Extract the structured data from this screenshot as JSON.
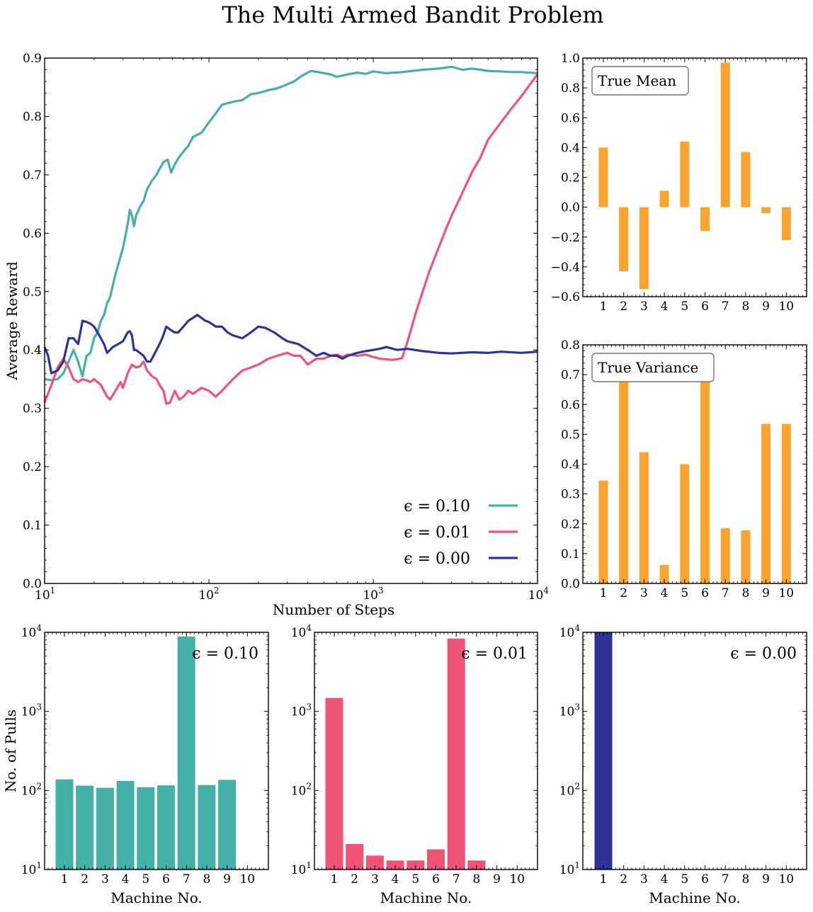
{
  "figure": {
    "title": "The Multi Armed Bandit Problem"
  },
  "colors": {
    "eps010": "#44b0a8",
    "eps001": "#ef5377",
    "eps000": "#2e3399",
    "orange": "#fba32f"
  },
  "chart_data": [
    {
      "id": "reward",
      "type": "line",
      "xscale": "log",
      "xlim": [
        10,
        10000
      ],
      "ylim": [
        0,
        0.9
      ],
      "xlabel": "Number of Steps",
      "ylabel": "Average Reward",
      "xticks": [
        10,
        100,
        1000,
        10000
      ],
      "xticklabels": [
        "10^1",
        "10^2",
        "10^3",
        "10^4"
      ],
      "yticks": [
        0.0,
        0.1,
        0.2,
        0.3,
        0.4,
        0.5,
        0.6,
        0.7,
        0.8,
        0.9
      ],
      "legend_position": "lower-right",
      "series": [
        {
          "name": "ϵ = 0.10",
          "color_key": "eps010",
          "points": [
            [
              10,
              0.35
            ],
            [
              11,
              0.348
            ],
            [
              12,
              0.35
            ],
            [
              13,
              0.36
            ],
            [
              14,
              0.38
            ],
            [
              15,
              0.4
            ],
            [
              16,
              0.38
            ],
            [
              17,
              0.355
            ],
            [
              18,
              0.39
            ],
            [
              19,
              0.395
            ],
            [
              20,
              0.42
            ],
            [
              21,
              0.43
            ],
            [
              22,
              0.45
            ],
            [
              23,
              0.46
            ],
            [
              24,
              0.48
            ],
            [
              25,
              0.49
            ],
            [
              26,
              0.51
            ],
            [
              27,
              0.53
            ],
            [
              28,
              0.545
            ],
            [
              29,
              0.56
            ],
            [
              30,
              0.575
            ],
            [
              31,
              0.595
            ],
            [
              32,
              0.615
            ],
            [
              33,
              0.64
            ],
            [
              34,
              0.63
            ],
            [
              35,
              0.612
            ],
            [
              36,
              0.63
            ],
            [
              38,
              0.645
            ],
            [
              40,
              0.655
            ],
            [
              42,
              0.675
            ],
            [
              45,
              0.69
            ],
            [
              48,
              0.7
            ],
            [
              50,
              0.71
            ],
            [
              53,
              0.722
            ],
            [
              56,
              0.726
            ],
            [
              59,
              0.704
            ],
            [
              62,
              0.718
            ],
            [
              65,
              0.728
            ],
            [
              70,
              0.74
            ],
            [
              75,
              0.75
            ],
            [
              80,
              0.765
            ],
            [
              90,
              0.772
            ],
            [
              100,
              0.79
            ],
            [
              110,
              0.805
            ],
            [
              120,
              0.82
            ],
            [
              140,
              0.825
            ],
            [
              160,
              0.828
            ],
            [
              180,
              0.838
            ],
            [
              200,
              0.84
            ],
            [
              230,
              0.845
            ],
            [
              260,
              0.848
            ],
            [
              300,
              0.855
            ],
            [
              330,
              0.86
            ],
            [
              370,
              0.87
            ],
            [
              420,
              0.878
            ],
            [
              480,
              0.875
            ],
            [
              550,
              0.872
            ],
            [
              600,
              0.868
            ],
            [
              700,
              0.872
            ],
            [
              800,
              0.875
            ],
            [
              900,
              0.873
            ],
            [
              1000,
              0.877
            ],
            [
              1200,
              0.874
            ],
            [
              1500,
              0.876
            ],
            [
              2000,
              0.88
            ],
            [
              2500,
              0.882
            ],
            [
              3000,
              0.885
            ],
            [
              3500,
              0.88
            ],
            [
              4000,
              0.882
            ],
            [
              5000,
              0.878
            ],
            [
              6000,
              0.877
            ],
            [
              7000,
              0.876
            ],
            [
              8000,
              0.876
            ],
            [
              10000,
              0.874
            ]
          ]
        },
        {
          "name": "ϵ = 0.01",
          "color_key": "eps001",
          "points": [
            [
              10,
              0.31
            ],
            [
              11,
              0.34
            ],
            [
              12,
              0.37
            ],
            [
              13,
              0.385
            ],
            [
              14,
              0.37
            ],
            [
              15,
              0.35
            ],
            [
              16,
              0.345
            ],
            [
              17,
              0.35
            ],
            [
              18,
              0.348
            ],
            [
              19,
              0.345
            ],
            [
              20,
              0.35
            ],
            [
              22,
              0.34
            ],
            [
              24,
              0.32
            ],
            [
              25,
              0.315
            ],
            [
              27,
              0.33
            ],
            [
              29,
              0.345
            ],
            [
              30,
              0.335
            ],
            [
              32,
              0.36
            ],
            [
              34,
              0.375
            ],
            [
              36,
              0.37
            ],
            [
              38,
              0.372
            ],
            [
              40,
              0.38
            ],
            [
              42,
              0.365
            ],
            [
              45,
              0.355
            ],
            [
              48,
              0.35
            ],
            [
              50,
              0.34
            ],
            [
              53,
              0.33
            ],
            [
              55,
              0.308
            ],
            [
              58,
              0.31
            ],
            [
              62,
              0.33
            ],
            [
              66,
              0.315
            ],
            [
              70,
              0.32
            ],
            [
              75,
              0.33
            ],
            [
              80,
              0.325
            ],
            [
              90,
              0.335
            ],
            [
              100,
              0.33
            ],
            [
              110,
              0.32
            ],
            [
              120,
              0.33
            ],
            [
              140,
              0.35
            ],
            [
              160,
              0.365
            ],
            [
              180,
              0.37
            ],
            [
              200,
              0.375
            ],
            [
              230,
              0.385
            ],
            [
              260,
              0.39
            ],
            [
              300,
              0.395
            ],
            [
              330,
              0.39
            ],
            [
              360,
              0.39
            ],
            [
              400,
              0.375
            ],
            [
              450,
              0.385
            ],
            [
              500,
              0.385
            ],
            [
              550,
              0.39
            ],
            [
              600,
              0.392
            ],
            [
              650,
              0.388
            ],
            [
              700,
              0.392
            ],
            [
              800,
              0.39
            ],
            [
              900,
              0.392
            ],
            [
              1000,
              0.388
            ],
            [
              1100,
              0.385
            ],
            [
              1200,
              0.384
            ],
            [
              1300,
              0.383
            ],
            [
              1400,
              0.384
            ],
            [
              1500,
              0.386
            ],
            [
              1600,
              0.41
            ],
            [
              1700,
              0.435
            ],
            [
              1800,
              0.46
            ],
            [
              2000,
              0.5
            ],
            [
              2200,
              0.535
            ],
            [
              2500,
              0.575
            ],
            [
              2800,
              0.61
            ],
            [
              3000,
              0.63
            ],
            [
              3500,
              0.67
            ],
            [
              4000,
              0.705
            ],
            [
              4500,
              0.73
            ],
            [
              5000,
              0.76
            ],
            [
              6000,
              0.79
            ],
            [
              7000,
              0.815
            ],
            [
              8000,
              0.835
            ],
            [
              9000,
              0.855
            ],
            [
              10000,
              0.872
            ]
          ]
        },
        {
          "name": "ϵ = 0.00",
          "color_key": "eps000",
          "points": [
            [
              10,
              0.405
            ],
            [
              10.5,
              0.39
            ],
            [
              11,
              0.36
            ],
            [
              12,
              0.365
            ],
            [
              13,
              0.38
            ],
            [
              14,
              0.42
            ],
            [
              15,
              0.42
            ],
            [
              16,
              0.41
            ],
            [
              17,
              0.45
            ],
            [
              18,
              0.448
            ],
            [
              19,
              0.445
            ],
            [
              20,
              0.44
            ],
            [
              21,
              0.43
            ],
            [
              22,
              0.42
            ],
            [
              23,
              0.41
            ],
            [
              24,
              0.395
            ],
            [
              25,
              0.4
            ],
            [
              26,
              0.405
            ],
            [
              28,
              0.41
            ],
            [
              30,
              0.415
            ],
            [
              32,
              0.43
            ],
            [
              33,
              0.432
            ],
            [
              34,
              0.425
            ],
            [
              35,
              0.4
            ],
            [
              36,
              0.4
            ],
            [
              38,
              0.395
            ],
            [
              40,
              0.39
            ],
            [
              42,
              0.38
            ],
            [
              44,
              0.38
            ],
            [
              46,
              0.39
            ],
            [
              48,
              0.4
            ],
            [
              50,
              0.41
            ],
            [
              52,
              0.42
            ],
            [
              55,
              0.44
            ],
            [
              58,
              0.435
            ],
            [
              62,
              0.43
            ],
            [
              65,
              0.43
            ],
            [
              70,
              0.44
            ],
            [
              75,
              0.45
            ],
            [
              80,
              0.455
            ],
            [
              85,
              0.46
            ],
            [
              90,
              0.455
            ],
            [
              95,
              0.45
            ],
            [
              100,
              0.448
            ],
            [
              110,
              0.44
            ],
            [
              120,
              0.44
            ],
            [
              130,
              0.43
            ],
            [
              140,
              0.425
            ],
            [
              160,
              0.42
            ],
            [
              180,
              0.43
            ],
            [
              200,
              0.44
            ],
            [
              220,
              0.438
            ],
            [
              250,
              0.43
            ],
            [
              280,
              0.42
            ],
            [
              300,
              0.415
            ],
            [
              350,
              0.41
            ],
            [
              400,
              0.4
            ],
            [
              450,
              0.39
            ],
            [
              500,
              0.395
            ],
            [
              550,
              0.39
            ],
            [
              600,
              0.39
            ],
            [
              650,
              0.385
            ],
            [
              700,
              0.39
            ],
            [
              800,
              0.395
            ],
            [
              900,
              0.398
            ],
            [
              1000,
              0.4
            ],
            [
              1100,
              0.402
            ],
            [
              1200,
              0.405
            ],
            [
              1400,
              0.4
            ],
            [
              1600,
              0.402
            ],
            [
              2000,
              0.398
            ],
            [
              2500,
              0.395
            ],
            [
              3000,
              0.394
            ],
            [
              4000,
              0.396
            ],
            [
              5000,
              0.395
            ],
            [
              6000,
              0.397
            ],
            [
              8000,
              0.395
            ],
            [
              10000,
              0.397
            ]
          ]
        }
      ]
    },
    {
      "id": "true-mean",
      "type": "bar",
      "title": "True Mean",
      "color_key": "orange",
      "categories": [
        "1",
        "2",
        "3",
        "4",
        "5",
        "6",
        "7",
        "8",
        "9",
        "10"
      ],
      "values": [
        0.4,
        -0.43,
        -0.55,
        0.11,
        0.44,
        -0.16,
        0.97,
        0.37,
        -0.04,
        -0.22
      ],
      "ylim": [
        -0.6,
        1.0
      ],
      "yticks": [
        -0.6,
        -0.4,
        -0.2,
        0.0,
        0.2,
        0.4,
        0.6,
        0.8,
        1.0
      ],
      "yticklabels": [
        "−0.6",
        "−0.4",
        "−0.2",
        "0.0",
        "0.2",
        "0.4",
        "0.6",
        "0.8",
        "1.0"
      ]
    },
    {
      "id": "true-variance",
      "type": "bar",
      "title": "True Variance",
      "color_key": "orange",
      "categories": [
        "1",
        "2",
        "3",
        "4",
        "5",
        "6",
        "7",
        "8",
        "9",
        "10"
      ],
      "values": [
        0.345,
        0.73,
        0.44,
        0.062,
        0.4,
        0.74,
        0.185,
        0.178,
        0.535,
        0.535
      ],
      "ylim": [
        0.0,
        0.8
      ],
      "yticks": [
        0.0,
        0.1,
        0.2,
        0.3,
        0.4,
        0.5,
        0.6,
        0.7,
        0.8
      ],
      "yticklabels": [
        "0.0",
        "0.1",
        "0.2",
        "0.3",
        "0.4",
        "0.5",
        "0.6",
        "0.7",
        "0.8"
      ]
    },
    {
      "id": "pulls-010",
      "type": "bar",
      "yscale": "log",
      "label": "ϵ = 0.10",
      "color_key": "eps010",
      "categories": [
        "1",
        "2",
        "3",
        "4",
        "5",
        "6",
        "7",
        "8",
        "9",
        "10"
      ],
      "values": [
        138,
        115,
        108,
        132,
        110,
        116,
        8850,
        117,
        136,
        10
      ],
      "ylim": [
        10,
        10000
      ],
      "xlabel": "Machine No.",
      "ylabel": "No. of Pulls"
    },
    {
      "id": "pulls-001",
      "type": "bar",
      "yscale": "log",
      "label": "ϵ = 0.01",
      "color_key": "eps001",
      "categories": [
        "1",
        "2",
        "3",
        "4",
        "5",
        "6",
        "7",
        "8",
        "9",
        "10"
      ],
      "values": [
        1480,
        21,
        15,
        13,
        13,
        18,
        8330,
        13,
        10,
        10
      ],
      "ylim": [
        10,
        10000
      ],
      "xlabel": "Machine No."
    },
    {
      "id": "pulls-000",
      "type": "bar",
      "yscale": "log",
      "label": "ϵ = 0.00",
      "color_key": "eps000",
      "categories": [
        "1",
        "2",
        "3",
        "4",
        "5",
        "6",
        "7",
        "8",
        "9",
        "10"
      ],
      "values": [
        9990,
        10,
        10,
        10,
        10,
        10,
        10,
        10,
        10,
        10
      ],
      "ylim": [
        10,
        10000
      ],
      "xlabel": "Machine No."
    }
  ]
}
